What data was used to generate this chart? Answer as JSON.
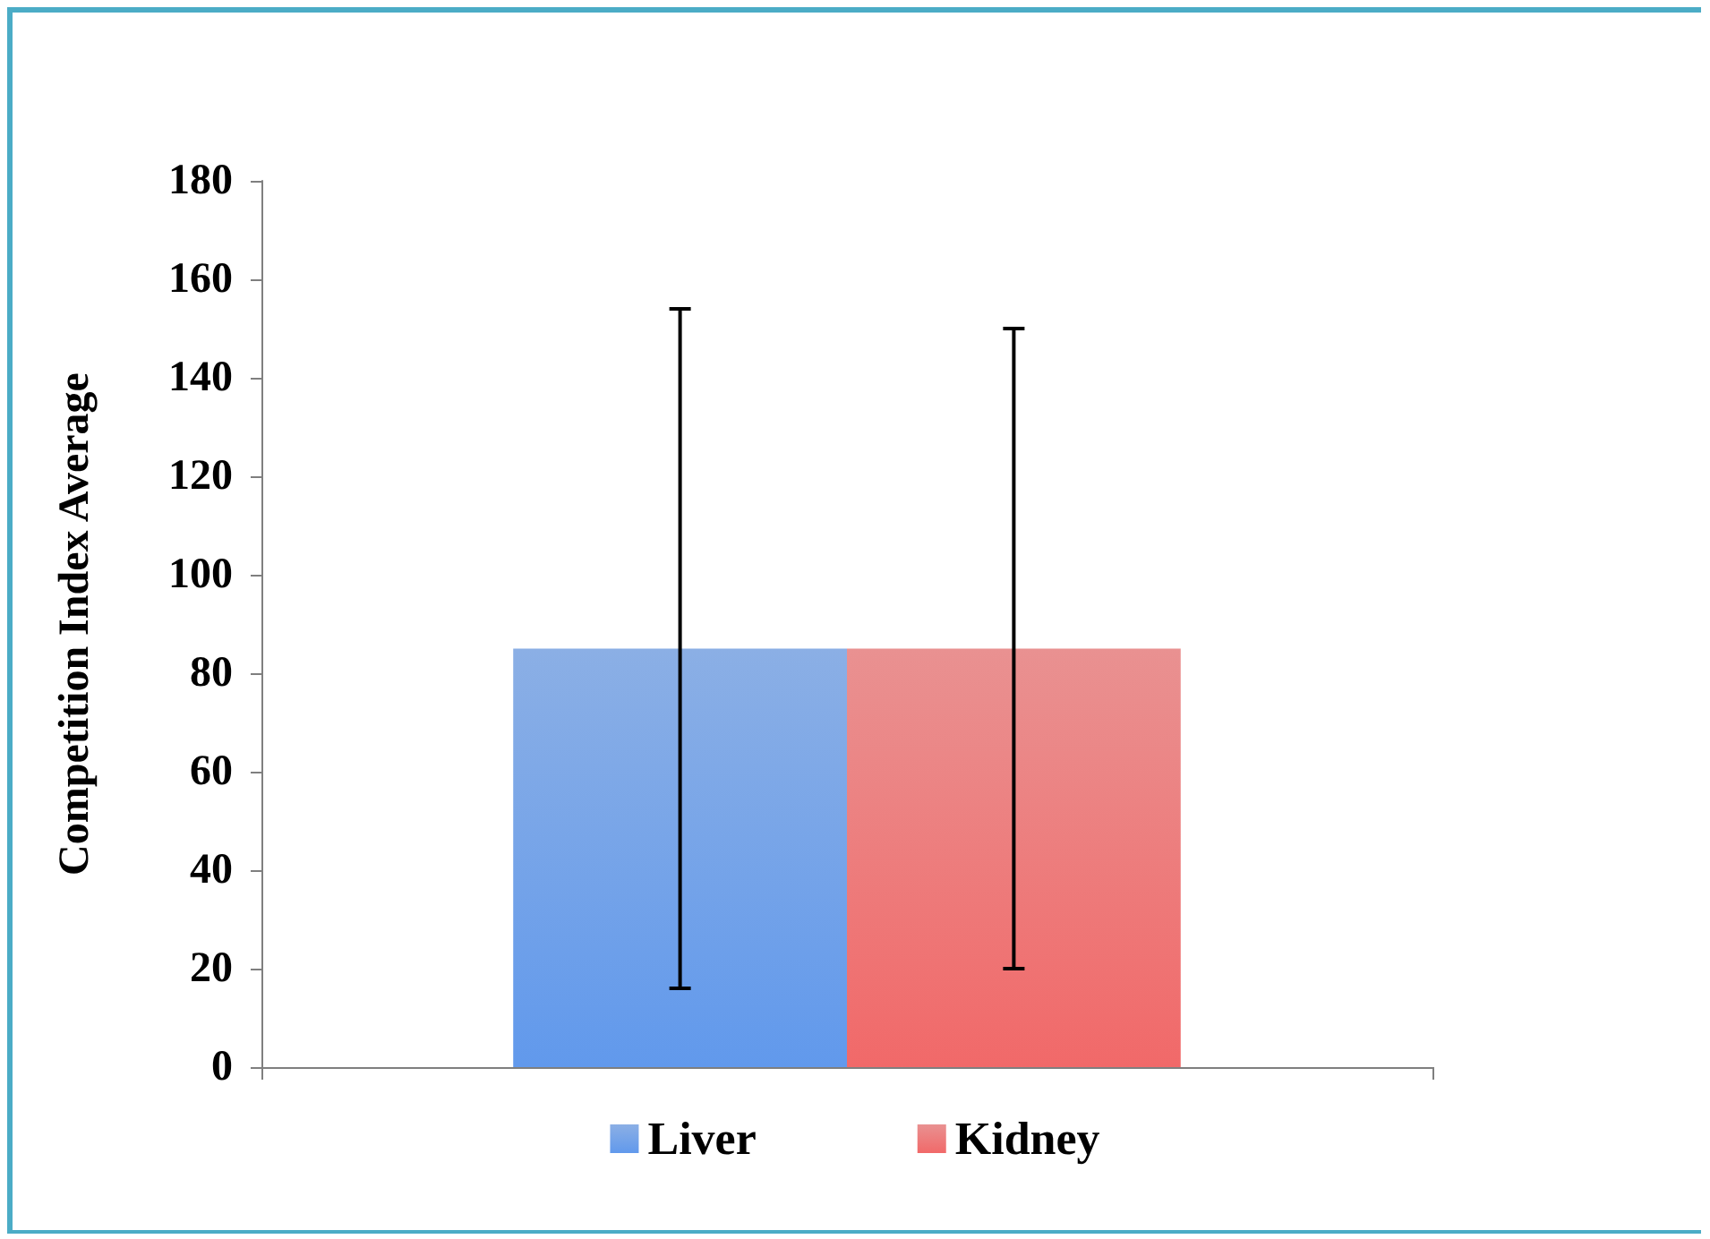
{
  "chart_data": {
    "type": "bar",
    "ylabel": "Competition Index Average",
    "categories": [
      null
    ],
    "series": [
      {
        "name": "Liver",
        "color": "#5a8edb",
        "values": [
          85
        ],
        "errors": [
          69
        ]
      },
      {
        "name": "Kidney",
        "color": "#e06262",
        "values": [
          85
        ],
        "errors": [
          65
        ]
      }
    ],
    "ylim": [
      0,
      180
    ],
    "yticks": [
      0,
      20,
      40,
      60,
      80,
      100,
      120,
      140,
      160,
      180
    ],
    "grid": false,
    "legend": "bottom"
  }
}
